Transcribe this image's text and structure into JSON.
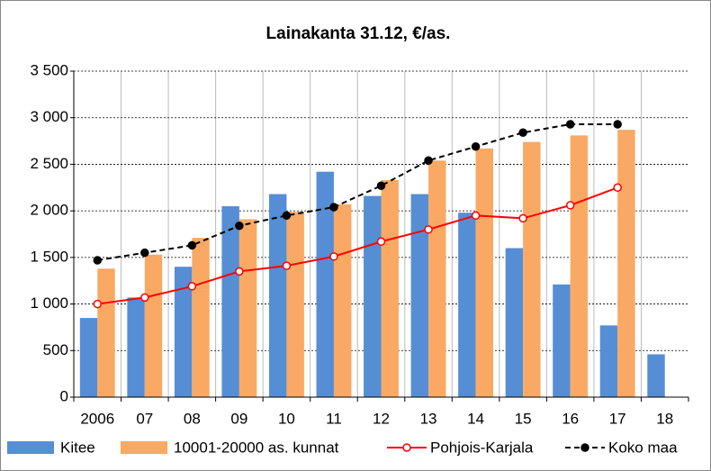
{
  "chart_data": {
    "type": "bar",
    "title": "Lainakanta 31.12, €/as.",
    "categories": [
      "2006",
      "07",
      "08",
      "09",
      "10",
      "11",
      "12",
      "13",
      "14",
      "15",
      "16",
      "17",
      "18"
    ],
    "series": [
      {
        "name": "Kitee",
        "type": "bar",
        "color": "#558ed5",
        "values": [
          850,
          1070,
          1400,
          2050,
          2180,
          2420,
          2160,
          2180,
          1980,
          1600,
          1210,
          770,
          460
        ]
      },
      {
        "name": "10001-20000 as. kunnat",
        "type": "bar",
        "color": "#f9a964",
        "values": [
          1380,
          1530,
          1710,
          1910,
          1990,
          2070,
          2330,
          2540,
          2670,
          2740,
          2810,
          2870,
          null
        ]
      },
      {
        "name": "Pohjois-Karjala",
        "type": "line",
        "color": "#ff0000",
        "marker_fill": "#ffffff",
        "dashed": false,
        "values": [
          1000,
          1070,
          1190,
          1350,
          1410,
          1510,
          1670,
          1800,
          1950,
          1920,
          2060,
          2250,
          null
        ]
      },
      {
        "name": "Koko maa",
        "type": "line",
        "color": "#000000",
        "marker_fill": "#000000",
        "dashed": true,
        "values": [
          1470,
          1550,
          1630,
          1840,
          1950,
          2040,
          2270,
          2540,
          2690,
          2840,
          2930,
          2930,
          null
        ]
      }
    ],
    "ylim": [
      0,
      3500
    ],
    "yticks": [
      0,
      500,
      {
        "value": 1000,
        "label": "1 000"
      },
      {
        "value": 1500,
        "label": "1 500"
      },
      {
        "value": 2000,
        "label": "2 000"
      },
      {
        "value": 2500,
        "label": "2 500"
      },
      {
        "value": 3000,
        "label": "3 000"
      },
      {
        "value": 3500,
        "label": "3 500"
      }
    ],
    "grid": true,
    "legend": "bottom"
  }
}
